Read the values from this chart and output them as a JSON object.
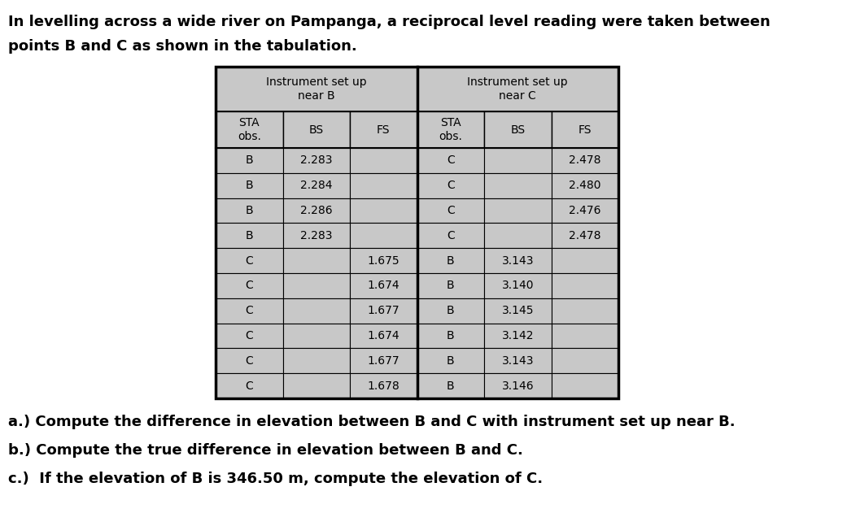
{
  "title_line1": "In levelling across a wide river on Pampanga, a reciprocal level reading were taken between",
  "title_line2": "points B and C as shown in the tabulation.",
  "header1": "Instrument set up\nnear B",
  "header2": "Instrument set up\nnear C",
  "col_headers": [
    "STA\nobs.",
    "BS",
    "FS",
    "STA\nobs.",
    "BS",
    "FS"
  ],
  "rows": [
    [
      "B",
      "2.283",
      "",
      "C",
      "",
      "2.478"
    ],
    [
      "B",
      "2.284",
      "",
      "C",
      "",
      "2.480"
    ],
    [
      "B",
      "2.286",
      "",
      "C",
      "",
      "2.476"
    ],
    [
      "B",
      "2.283",
      "",
      "C",
      "",
      "2.478"
    ],
    [
      "C",
      "",
      "1.675",
      "B",
      "3.143",
      ""
    ],
    [
      "C",
      "",
      "1.674",
      "B",
      "3.140",
      ""
    ],
    [
      "C",
      "",
      "1.677",
      "B",
      "3.145",
      ""
    ],
    [
      "C",
      "",
      "1.674",
      "B",
      "3.142",
      ""
    ],
    [
      "C",
      "",
      "1.677",
      "B",
      "3.143",
      ""
    ],
    [
      "C",
      "",
      "1.678",
      "B",
      "3.146",
      ""
    ]
  ],
  "question_a": "a.) Compute the difference in elevation between B and C with instrument set up near B.",
  "question_b": "b.) Compute the true difference in elevation between B and C.",
  "question_c": "c.)  If the elevation of B is 346.50 m, compute the elevation of C.",
  "bg_color": "#ffffff",
  "cell_bg": "#c8c8c8",
  "text_color": "#000000",
  "border_color": "#000000",
  "title_fontsize": 13,
  "header_fontsize": 10,
  "cell_fontsize": 10,
  "question_fontsize": 13
}
